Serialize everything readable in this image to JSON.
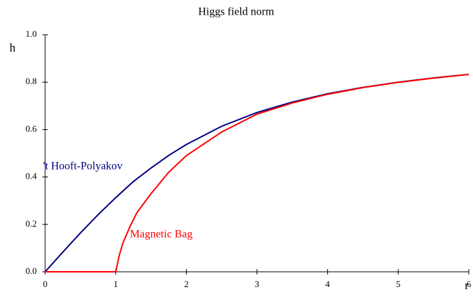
{
  "chart_data": {
    "type": "line",
    "title": "Higgs field norm",
    "x_label": "r",
    "y_label": "h",
    "xlim": [
      0,
      6
    ],
    "ylim": [
      0,
      1.0
    ],
    "xticks": [
      0,
      1,
      2,
      3,
      4,
      5,
      6
    ],
    "yticks": [
      {
        "value": 0,
        "label": "0.0"
      },
      {
        "value": 0.2,
        "label": "0.2"
      },
      {
        "value": 0.4,
        "label": "0.4"
      },
      {
        "value": 0.6,
        "label": "0.6"
      },
      {
        "value": 0.8,
        "label": "0.8"
      },
      {
        "value": 1.0,
        "label": "1.0"
      }
    ],
    "series": [
      {
        "name": "'t Hooft-Polyakov",
        "color": "#000080",
        "x": [
          0,
          0.25,
          0.5,
          0.75,
          1,
          1.25,
          1.5,
          1.75,
          2,
          2.5,
          3,
          3.5,
          4,
          4.5,
          5,
          5.5,
          6
        ],
        "values": [
          0,
          0.083,
          0.164,
          0.241,
          0.313,
          0.381,
          0.438,
          0.491,
          0.537,
          0.614,
          0.672,
          0.716,
          0.751,
          0.778,
          0.8,
          0.818,
          0.833
        ]
      },
      {
        "name": "Magnetic Bag",
        "color": "#ff0000",
        "x": [
          0,
          1,
          1.05,
          1.1,
          1.2,
          1.3,
          1.5,
          1.75,
          2,
          2.5,
          3,
          3.5,
          4,
          4.5,
          5,
          5.5,
          6
        ],
        "values": [
          0,
          0,
          0.07,
          0.12,
          0.19,
          0.25,
          0.33,
          0.42,
          0.49,
          0.59,
          0.665,
          0.712,
          0.749,
          0.777,
          0.799,
          0.817,
          0.833
        ]
      }
    ]
  }
}
